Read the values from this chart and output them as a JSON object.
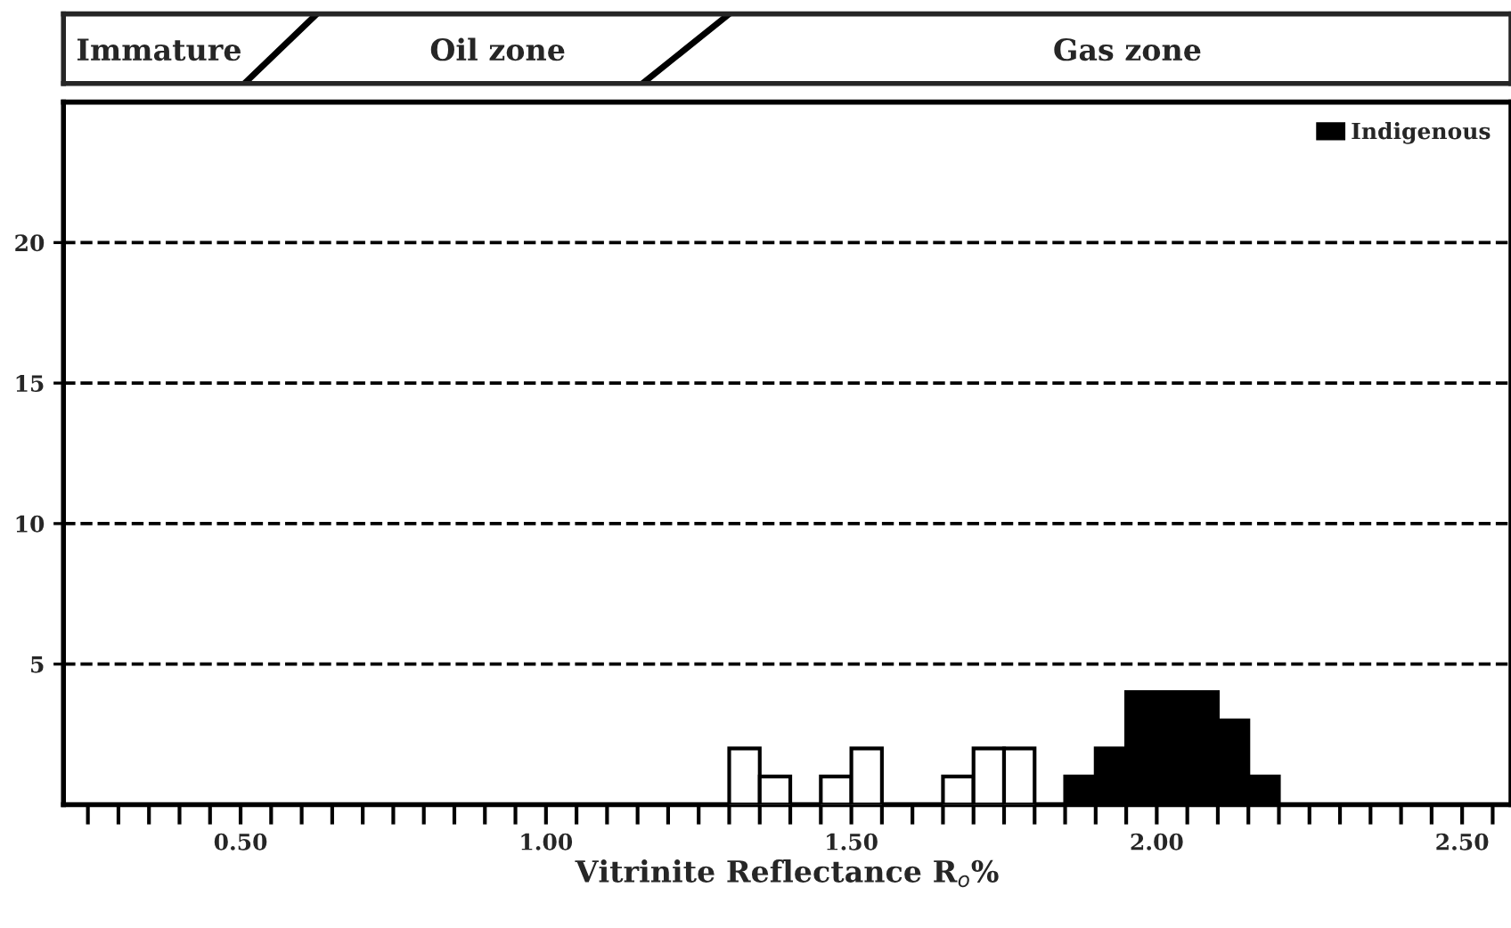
{
  "chart_data": {
    "type": "histogram",
    "xlabel": "Vitrinite Reflectance R$_{o}$%",
    "annotations": [
      "Immature",
      "Oil zone",
      "Gas zone"
    ],
    "bins": [
      1.3,
      1.35,
      1.4,
      1.45,
      1.5,
      1.55,
      1.6,
      1.65,
      1.7,
      1.75,
      1.8,
      1.85,
      1.9,
      1.95,
      2.0,
      2.05,
      2.1,
      2.15,
      2.2
    ],
    "series": [
      {
        "color": "#ffffff",
        "values": [
          2,
          1,
          0,
          1,
          2,
          0,
          0,
          1,
          2,
          2,
          0,
          0,
          0,
          0,
          0,
          0,
          0,
          0
        ]
      },
      {
        "name": "Indigenous",
        "color": "#000000",
        "values": [
          0,
          0,
          0,
          0,
          0,
          0,
          0,
          0,
          0,
          0,
          0,
          1,
          2,
          4,
          4,
          4,
          3,
          1
        ]
      }
    ],
    "xlim": [
      0.21,
      2.58
    ],
    "xticks": [
      {
        "value": 0.25,
        "label": null
      },
      {
        "value": 0.3,
        "label": null
      },
      {
        "value": 0.35,
        "label": null
      },
      {
        "value": 0.4,
        "label": null
      },
      {
        "value": 0.45,
        "label": null
      },
      {
        "value": 0.5,
        "label": "0.50"
      },
      {
        "value": 0.55,
        "label": null
      },
      {
        "value": 0.6,
        "label": null
      },
      {
        "value": 0.65,
        "label": null
      },
      {
        "value": 0.7,
        "label": null
      },
      {
        "value": 0.75,
        "label": null
      },
      {
        "value": 0.8,
        "label": null
      },
      {
        "value": 0.85,
        "label": null
      },
      {
        "value": 0.9,
        "label": null
      },
      {
        "value": 0.95,
        "label": null
      },
      {
        "value": 1.0,
        "label": "1.00"
      },
      {
        "value": 1.05,
        "label": null
      },
      {
        "value": 1.1,
        "label": null
      },
      {
        "value": 1.15,
        "label": null
      },
      {
        "value": 1.2,
        "label": null
      },
      {
        "value": 1.25,
        "label": null
      },
      {
        "value": 1.3,
        "label": null
      },
      {
        "value": 1.35,
        "label": null
      },
      {
        "value": 1.4,
        "label": null
      },
      {
        "value": 1.45,
        "label": null
      },
      {
        "value": 1.5,
        "label": "1.50"
      },
      {
        "value": 1.55,
        "label": null
      },
      {
        "value": 1.6,
        "label": null
      },
      {
        "value": 1.65,
        "label": null
      },
      {
        "value": 1.7,
        "label": null
      },
      {
        "value": 1.75,
        "label": null
      },
      {
        "value": 1.8,
        "label": null
      },
      {
        "value": 1.85,
        "label": null
      },
      {
        "value": 1.9,
        "label": null
      },
      {
        "value": 1.95,
        "label": null
      },
      {
        "value": 2.0,
        "label": "2.00"
      },
      {
        "value": 2.05,
        "label": null
      },
      {
        "value": 2.1,
        "label": null
      },
      {
        "value": 2.15,
        "label": null
      },
      {
        "value": 2.2,
        "label": null
      },
      {
        "value": 2.25,
        "label": null
      },
      {
        "value": 2.3,
        "label": null
      },
      {
        "value": 2.35,
        "label": null
      },
      {
        "value": 2.4,
        "label": null
      },
      {
        "value": 2.45,
        "label": null
      },
      {
        "value": 2.5,
        "label": "2.50"
      },
      {
        "value": 2.55,
        "label": null
      }
    ],
    "ylim": [
      0,
      25
    ],
    "yticks": [
      5,
      10,
      15,
      20
    ],
    "grid": "y",
    "line_style": "dashed",
    "legend": "top right"
  }
}
